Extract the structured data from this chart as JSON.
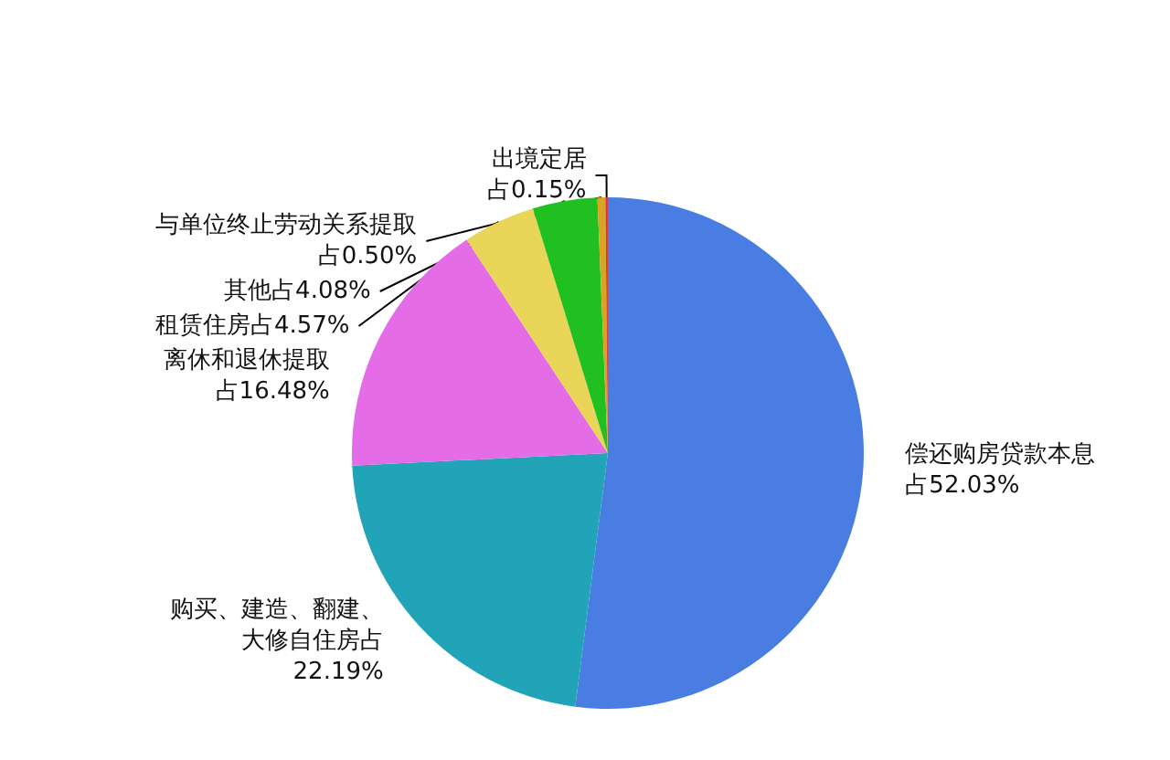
{
  "chart_data": {
    "type": "pie",
    "categories": [
      "偿还购房贷款本息",
      "购买、建造、翻建、大修自住房",
      "离休和退休提取",
      "租赁住房",
      "其他",
      "与单位终止劳动关系提取",
      "出境定居"
    ],
    "values": [
      52.03,
      22.19,
      16.48,
      4.57,
      4.08,
      0.5,
      0.15
    ],
    "value_labels": [
      "占52.03%",
      "占22.19%",
      "占16.48%",
      "占4.57%",
      "占4.08%",
      "占0.50%",
      "占0.15%"
    ],
    "colors": [
      "#4a7de2",
      "#22a4b8",
      "#e46ce6",
      "#e9d558",
      "#20c020",
      "#d9a520",
      "#d8352c"
    ],
    "legend": false
  }
}
